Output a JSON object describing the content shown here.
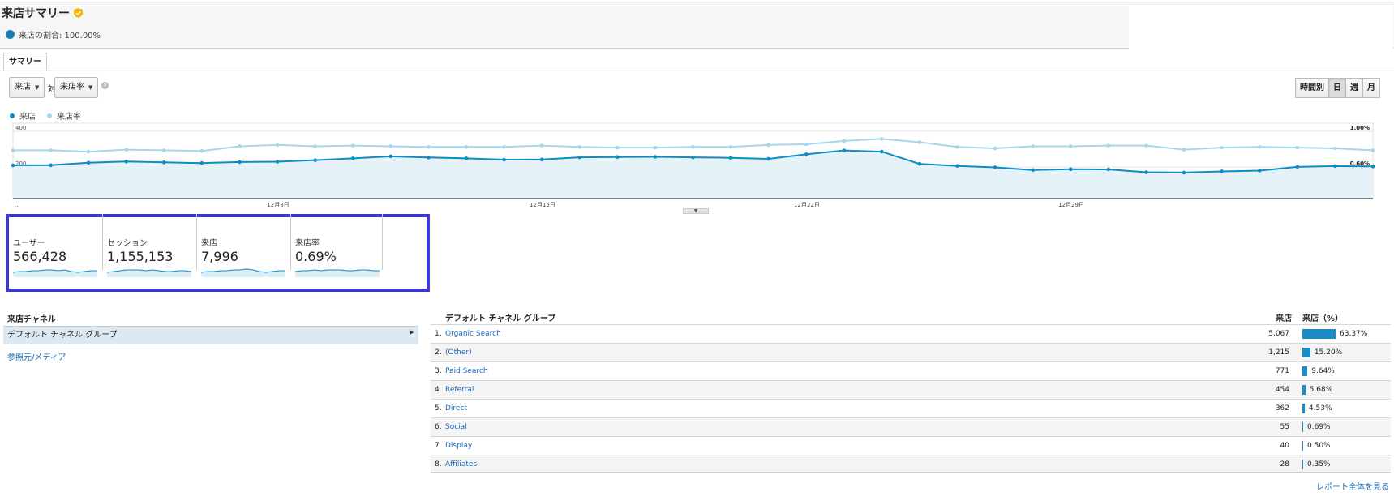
{
  "header": {
    "title": "来店サマリー",
    "percentage_text": "来店の割合: 100.00%"
  },
  "tabs": [
    {
      "label": "サマリー"
    }
  ],
  "controls": {
    "metric1": "来店",
    "vs": "対",
    "metric2": "来店率",
    "granularity": [
      "時間別",
      "日",
      "週",
      "月"
    ],
    "granularity_selected": "日"
  },
  "colors": {
    "primary": "#0f8bc6",
    "secondary": "#a6d6ec",
    "selection_box": "#3a3ad0"
  },
  "chart_data": {
    "type": "line",
    "legend": [
      "来店",
      "来店率"
    ],
    "y_left_ticks": [
      "400",
      "200"
    ],
    "y_right_ticks": [
      "1.00%",
      "0.60%"
    ],
    "x_tick_labels": [
      "...",
      "12月8日",
      "12月15日",
      "12月22日",
      "12月29日"
    ],
    "series": [
      {
        "name": "来店",
        "values": [
          198,
          199,
          214,
          221,
          216,
          212,
          218,
          220,
          229,
          240,
          252,
          245,
          240,
          232,
          233,
          246,
          248,
          249,
          246,
          243,
          237,
          264,
          287,
          280,
          207,
          195,
          186,
          170,
          175,
          174,
          157,
          155,
          162,
          167,
          189,
          194,
          192
        ]
      },
      {
        "name": "来店率",
        "values": [
          0.72,
          0.72,
          0.7,
          0.73,
          0.72,
          0.71,
          0.78,
          0.8,
          0.78,
          0.79,
          0.78,
          0.77,
          0.77,
          0.77,
          0.79,
          0.77,
          0.76,
          0.76,
          0.77,
          0.77,
          0.8,
          0.81,
          0.86,
          0.89,
          0.84,
          0.77,
          0.75,
          0.78,
          0.78,
          0.79,
          0.79,
          0.73,
          0.76,
          0.77,
          0.76,
          0.75,
          0.72
        ]
      }
    ]
  },
  "metrics": [
    {
      "label": "ユーザー",
      "value": "566,428"
    },
    {
      "label": "セッション",
      "value": "1,155,153"
    },
    {
      "label": "来店",
      "value": "7,996"
    },
    {
      "label": "来店率",
      "value": "0.69%"
    }
  ],
  "left_panel": {
    "title": "来店チャネル",
    "selected": "デフォルト チャネル グループ",
    "link": "参照元/メディア"
  },
  "table": {
    "headers": {
      "dimension": "デフォルト チャネル グループ",
      "visits": "来店",
      "pct": "来店（%）"
    },
    "rows": [
      {
        "rank": "1.",
        "name": "Organic Search",
        "visits": "5,067",
        "pct": "63.37%",
        "share": 63.37
      },
      {
        "rank": "2.",
        "name": "(Other)",
        "visits": "1,215",
        "pct": "15.20%",
        "share": 15.2
      },
      {
        "rank": "3.",
        "name": "Paid Search",
        "visits": "771",
        "pct": "9.64%",
        "share": 9.64
      },
      {
        "rank": "4.",
        "name": "Referral",
        "visits": "454",
        "pct": "5.68%",
        "share": 5.68
      },
      {
        "rank": "5.",
        "name": "Direct",
        "visits": "362",
        "pct": "4.53%",
        "share": 4.53
      },
      {
        "rank": "6.",
        "name": "Social",
        "visits": "55",
        "pct": "0.69%",
        "share": 0.69
      },
      {
        "rank": "7.",
        "name": "Display",
        "visits": "40",
        "pct": "0.50%",
        "share": 0.5
      },
      {
        "rank": "8.",
        "name": "Affiliates",
        "visits": "28",
        "pct": "0.35%",
        "share": 0.35
      }
    ],
    "report_link": "レポート全体を見る"
  }
}
